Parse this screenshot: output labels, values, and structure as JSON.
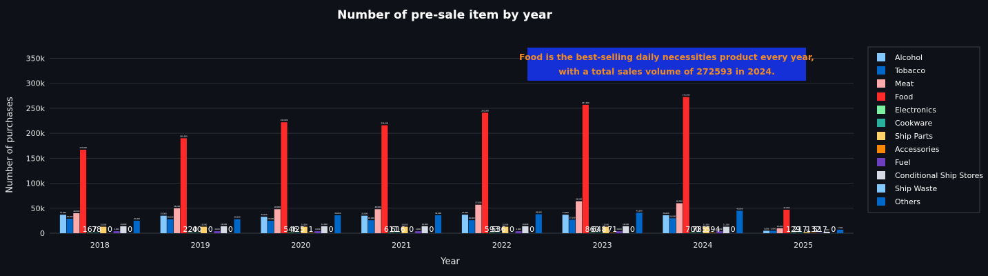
{
  "chart_data": {
    "type": "bar",
    "title": "Number of pre-sale item by year",
    "xlabel": "Year",
    "ylabel": "Number of purchases",
    "ylim": [
      0,
      370000
    ],
    "yticks": [
      0,
      50000,
      100000,
      150000,
      200000,
      250000,
      300000,
      350000
    ],
    "ytick_labels": [
      "0",
      "50k",
      "100k",
      "150k",
      "200k",
      "250k",
      "300k",
      "350k"
    ],
    "categories": [
      "2018",
      "2019",
      "2020",
      "2021",
      "2022",
      "2023",
      "2024",
      "2025"
    ],
    "legend_position": "right",
    "grid": true,
    "annotation": {
      "line1": "Food is the best-selling daily necessities product every year,",
      "line2": "with a total sales volume of 272593 in 2024."
    },
    "series": [
      {
        "name": "Alcohol",
        "color": "#83c9ff",
        "values": [
          37000,
          35000,
          33000,
          35000,
          37000,
          37000,
          36000,
          5000
        ]
      },
      {
        "name": "Tobacco",
        "color": "#0068c9",
        "values": [
          29000,
          28000,
          25000,
          26000,
          26000,
          27000,
          30000,
          5000
        ]
      },
      {
        "name": "Meat",
        "color": "#ffabab",
        "values": [
          40000,
          50000,
          48000,
          48000,
          57000,
          64000,
          60000,
          10000
        ]
      },
      {
        "name": "Food",
        "color": "#ff2b2b",
        "values": [
          167000,
          190000,
          222000,
          216000,
          241000,
          257000,
          272593,
          47000
        ]
      },
      {
        "name": "Electronics",
        "color": "#7defa1",
        "values": [
          167,
          220,
          546,
          611,
          593,
          860,
          700,
          129
        ]
      },
      {
        "name": "Cookware",
        "color": "#29b09d",
        "values": [
          78,
          40,
          425,
          616,
          536,
          648,
          785,
          217
        ]
      },
      {
        "name": "Ship Parts",
        "color": "#ffd16a",
        "values": [
          13000,
          13000,
          13000,
          13000,
          13000,
          13000,
          13000,
          2000
        ]
      },
      {
        "name": "Accessories",
        "color": "#ff8700",
        "values": [
          0,
          0,
          1,
          0,
          0,
          71,
          594,
          132
        ]
      },
      {
        "name": "Fuel",
        "color": "#6d3fc0",
        "values": [
          4000,
          4000,
          4000,
          4000,
          4000,
          4000,
          4000,
          517
        ]
      },
      {
        "name": "Conditional Ship Stores",
        "color": "#d5dae5",
        "values": [
          14000,
          14000,
          14000,
          14000,
          14000,
          14000,
          13000,
          3000
        ]
      },
      {
        "name": "Ship Waste",
        "color": "#83c9ff",
        "values": [
          0,
          0,
          0,
          0,
          0,
          0,
          0,
          0
        ]
      },
      {
        "name": "Others",
        "color": "#0068c9",
        "values": [
          25000,
          28000,
          36000,
          36000,
          38000,
          41000,
          45000,
          7000
        ]
      }
    ]
  }
}
